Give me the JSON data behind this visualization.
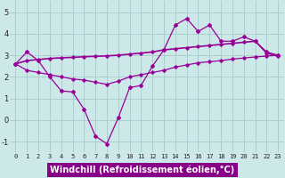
{
  "xlabel": "Windchill (Refroidissement éolien,°C)",
  "x_ticks": [
    0,
    1,
    2,
    3,
    4,
    5,
    6,
    7,
    8,
    9,
    10,
    11,
    12,
    13,
    14,
    15,
    16,
    17,
    18,
    19,
    20,
    21,
    22,
    23
  ],
  "ylim": [
    -1.5,
    5.5
  ],
  "yticks": [
    -1,
    0,
    1,
    2,
    3,
    4,
    5
  ],
  "line1_x": [
    0,
    1,
    2,
    3,
    4,
    5,
    6,
    7,
    8,
    9,
    10,
    11,
    12,
    13,
    14,
    15,
    16,
    17,
    18,
    19,
    20,
    21,
    22,
    23
  ],
  "line1_y": [
    2.6,
    3.15,
    2.75,
    2.0,
    1.35,
    1.3,
    0.5,
    -0.75,
    -1.1,
    0.1,
    1.5,
    1.6,
    2.5,
    3.25,
    4.4,
    4.7,
    4.1,
    4.4,
    3.65,
    3.65,
    3.85,
    3.65,
    3.15,
    3.0
  ],
  "line2_x": [
    0,
    1,
    2,
    3,
    4,
    5,
    6,
    7,
    8,
    9,
    10,
    11,
    12,
    13,
    14,
    15,
    16,
    17,
    18,
    19,
    20,
    21,
    22,
    23
  ],
  "line2_y": [
    2.6,
    2.75,
    2.8,
    2.85,
    2.88,
    2.9,
    2.93,
    2.95,
    2.97,
    3.0,
    3.05,
    3.1,
    3.15,
    3.25,
    3.3,
    3.35,
    3.4,
    3.45,
    3.5,
    3.55,
    3.6,
    3.65,
    3.1,
    2.95
  ],
  "line3_x": [
    0,
    1,
    2,
    3,
    4,
    5,
    6,
    7,
    8,
    9,
    10,
    11,
    12,
    13,
    14,
    15,
    16,
    17,
    18,
    19,
    20,
    21,
    22,
    23
  ],
  "line3_y": [
    2.6,
    2.3,
    2.2,
    2.1,
    2.0,
    1.9,
    1.85,
    1.75,
    1.65,
    1.8,
    2.0,
    2.1,
    2.2,
    2.3,
    2.45,
    2.55,
    2.65,
    2.7,
    2.75,
    2.82,
    2.87,
    2.92,
    2.96,
    3.0
  ],
  "line_color": "#990099",
  "bg_color": "#cce8e8",
  "grid_color": "#aacece",
  "xlabel_bg": "#880088",
  "xlabel_color": "#ffffff",
  "tick_fontsize": 5,
  "xlabel_fontsize": 7
}
